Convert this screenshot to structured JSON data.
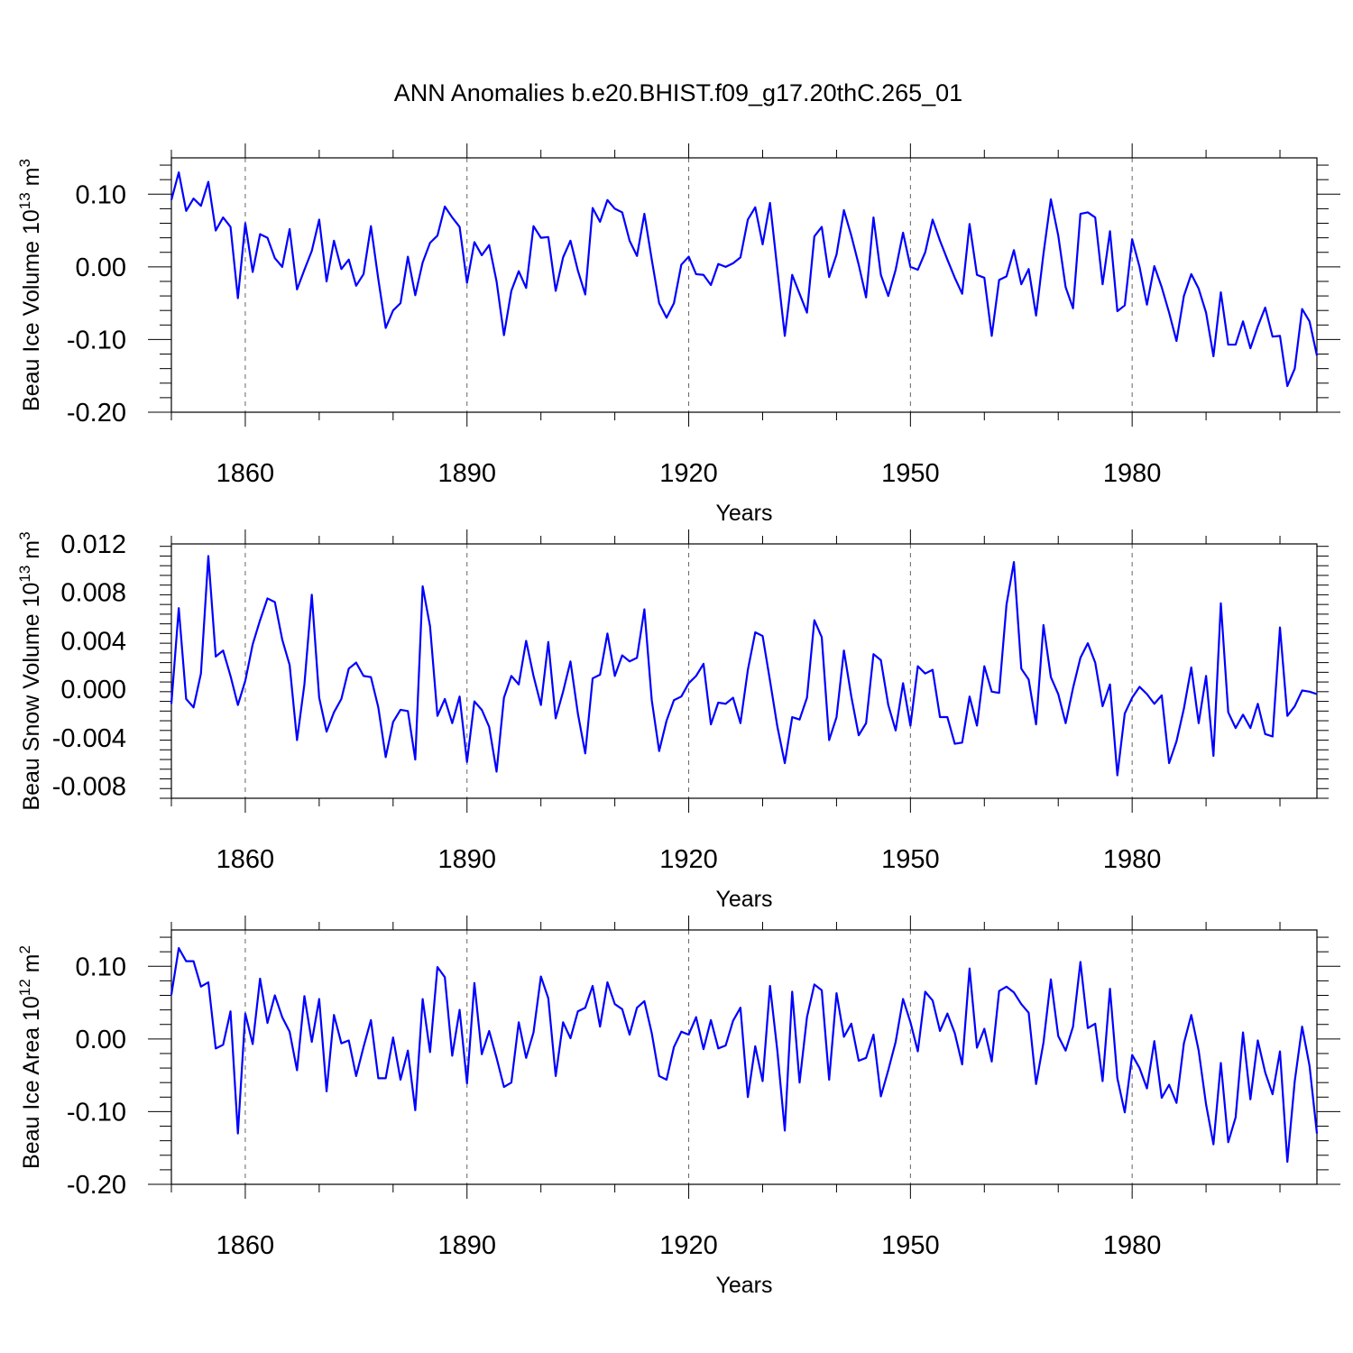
{
  "figure": {
    "title": "ANN Anomalies b.e20.BHIST.f09_g17.20thC.265_01",
    "line_color": "#0000ff"
  },
  "chart_data": [
    {
      "type": "line",
      "ylabel": "Beau Ice Volume 10",
      "ylabel_exp": "13",
      "ylabel_unit": " m",
      "ylabel_unit_exp": "3",
      "xlabel": "Years",
      "xlim": [
        1850,
        2005
      ],
      "ylim": [
        -0.2,
        0.15
      ],
      "yticks": [
        -0.2,
        -0.1,
        0.0,
        0.1
      ],
      "ytick_labels": [
        "-0.20",
        "-0.10",
        "0.00",
        "0.10"
      ],
      "xticks": [
        1860,
        1890,
        1920,
        1950,
        1980
      ],
      "xtick_labels": [
        "1860",
        "1890",
        "1920",
        "1950",
        "1980"
      ],
      "x_start": 1850,
      "values": [
        0.092,
        0.13,
        0.077,
        0.094,
        0.084,
        0.117,
        0.05,
        0.068,
        0.055,
        -0.043,
        0.06,
        -0.007,
        0.045,
        0.04,
        0.012,
        0.0,
        0.052,
        -0.031,
        -0.004,
        0.022,
        0.065,
        -0.02,
        0.036,
        -0.003,
        0.01,
        -0.026,
        -0.01,
        0.056,
        -0.017,
        -0.084,
        -0.06,
        -0.05,
        0.014,
        -0.039,
        0.006,
        0.033,
        0.043,
        0.083,
        0.068,
        0.055,
        -0.022,
        0.034,
        0.016,
        0.03,
        -0.02,
        -0.094,
        -0.033,
        -0.006,
        -0.029,
        0.056,
        0.04,
        0.041,
        -0.033,
        0.013,
        0.036,
        -0.005,
        -0.038,
        0.081,
        0.062,
        0.092,
        0.08,
        0.075,
        0.036,
        0.015,
        0.073,
        0.01,
        -0.05,
        -0.07,
        -0.05,
        0.003,
        0.014,
        -0.01,
        -0.011,
        -0.025,
        0.004,
        0.0,
        0.005,
        0.013,
        0.065,
        0.082,
        0.031,
        0.088,
        -0.004,
        -0.095,
        -0.011,
        -0.037,
        -0.063,
        0.042,
        0.055,
        -0.014,
        0.017,
        0.078,
        0.043,
        0.003,
        -0.042,
        0.068,
        -0.011,
        -0.04,
        -0.004,
        0.047,
        0.0,
        -0.004,
        0.02,
        0.065,
        0.036,
        0.01,
        -0.015,
        -0.037,
        0.059,
        -0.011,
        -0.015,
        -0.095,
        -0.018,
        -0.013,
        0.023,
        -0.024,
        -0.003,
        -0.067,
        0.018,
        0.093,
        0.043,
        -0.028,
        -0.057,
        0.073,
        0.075,
        0.068,
        -0.024,
        0.049,
        -0.061,
        -0.053,
        0.038,
        0.0,
        -0.052,
        0.001,
        -0.028,
        -0.063,
        -0.102,
        -0.04,
        -0.01,
        -0.03,
        -0.063,
        -0.123,
        -0.035,
        -0.107,
        -0.107,
        -0.075,
        -0.112,
        -0.082,
        -0.056,
        -0.096,
        -0.095,
        -0.164,
        -0.14,
        -0.058,
        -0.075,
        -0.122
      ]
    },
    {
      "type": "line",
      "ylabel": "Beau Snow Volume 10",
      "ylabel_exp": "13",
      "ylabel_unit": " m",
      "ylabel_unit_exp": "3",
      "xlabel": "Years",
      "xlim": [
        1850,
        2005
      ],
      "ylim": [
        -0.009,
        0.012
      ],
      "yticks": [
        -0.008,
        -0.004,
        0.0,
        0.004,
        0.008,
        0.012
      ],
      "ytick_labels": [
        "-0.008",
        "-0.004",
        "0.000",
        "0.004",
        "0.008",
        "0.012"
      ],
      "xticks": [
        1860,
        1890,
        1920,
        1950,
        1980
      ],
      "xtick_labels": [
        "1860",
        "1890",
        "1920",
        "1950",
        "1980"
      ],
      "x_start": 1850,
      "values": [
        -0.0012,
        0.0067,
        -0.0008,
        -0.0015,
        0.0013,
        0.011,
        0.0027,
        0.0032,
        0.0011,
        -0.0013,
        0.0007,
        0.0037,
        0.0057,
        0.0075,
        0.0072,
        0.0041,
        0.002,
        -0.0042,
        0.0004,
        0.0078,
        -0.0007,
        -0.0035,
        -0.0019,
        -0.0008,
        0.0017,
        0.0022,
        0.0011,
        0.001,
        -0.0015,
        -0.0056,
        -0.0027,
        -0.0017,
        -0.0018,
        -0.0058,
        0.0085,
        0.0052,
        -0.0022,
        -0.0008,
        -0.0028,
        -0.0006,
        -0.006,
        -0.001,
        -0.0017,
        -0.0031,
        -0.0068,
        -0.0007,
        0.0011,
        0.0004,
        0.004,
        0.0011,
        -0.0013,
        0.0039,
        -0.0024,
        -0.0002,
        0.0023,
        -0.002,
        -0.0053,
        0.0009,
        0.0012,
        0.0046,
        0.0011,
        0.0028,
        0.0023,
        0.0026,
        0.0066,
        -0.0009,
        -0.0051,
        -0.0026,
        -0.0009,
        -0.0006,
        0.0005,
        0.0011,
        0.0021,
        -0.0029,
        -0.0011,
        -0.0012,
        -0.0007,
        -0.0028,
        0.0016,
        0.0047,
        0.0044,
        0.0007,
        -0.0031,
        -0.0061,
        -0.0023,
        -0.0025,
        -0.0007,
        0.0057,
        0.0043,
        -0.0042,
        -0.0023,
        0.0032,
        -0.0006,
        -0.0038,
        -0.0028,
        0.0029,
        0.0024,
        -0.0013,
        -0.0034,
        0.0005,
        -0.003,
        0.0019,
        0.0013,
        0.0016,
        -0.0023,
        -0.0023,
        -0.0045,
        -0.0044,
        -0.0006,
        -0.003,
        0.0019,
        -0.0002,
        -0.0003,
        0.007,
        0.0105,
        0.0017,
        0.0008,
        -0.0029,
        0.0053,
        0.001,
        -0.0004,
        -0.0028,
        0.0001,
        0.0026,
        0.0038,
        0.0022,
        -0.0014,
        0.0004,
        -0.0071,
        -0.002,
        -0.0007,
        0.0002,
        -0.0004,
        -0.0012,
        -0.0005,
        -0.0061,
        -0.0043,
        -0.0016,
        0.0018,
        -0.0028,
        0.0011,
        -0.0055,
        0.0071,
        -0.0019,
        -0.0032,
        -0.0021,
        -0.0032,
        -0.0012,
        -0.0037,
        -0.0039,
        0.0051,
        -0.0022,
        -0.0014,
        -0.0001,
        -0.0002,
        -0.0004
      ]
    },
    {
      "type": "line",
      "ylabel": "Beau Ice Area 10",
      "ylabel_exp": "12",
      "ylabel_unit": " m",
      "ylabel_unit_exp": "2",
      "xlabel": "Years",
      "xlim": [
        1850,
        2005
      ],
      "ylim": [
        -0.2,
        0.15
      ],
      "yticks": [
        -0.2,
        -0.1,
        0.0,
        0.1
      ],
      "ytick_labels": [
        "-0.20",
        "-0.10",
        "0.00",
        "0.10"
      ],
      "xticks": [
        1860,
        1890,
        1920,
        1950,
        1980
      ],
      "xtick_labels": [
        "1860",
        "1890",
        "1920",
        "1950",
        "1980"
      ],
      "x_start": 1850,
      "values": [
        0.061,
        0.125,
        0.107,
        0.107,
        0.072,
        0.078,
        -0.013,
        -0.008,
        0.038,
        -0.13,
        0.035,
        -0.007,
        0.083,
        0.022,
        0.06,
        0.03,
        0.01,
        -0.043,
        0.059,
        -0.004,
        0.055,
        -0.072,
        0.033,
        -0.006,
        -0.002,
        -0.051,
        -0.011,
        0.026,
        -0.054,
        -0.054,
        0.002,
        -0.056,
        -0.016,
        -0.098,
        0.055,
        -0.018,
        0.099,
        0.085,
        -0.023,
        0.04,
        -0.061,
        0.077,
        -0.021,
        0.011,
        -0.026,
        -0.066,
        -0.06,
        0.023,
        -0.026,
        0.009,
        0.086,
        0.056,
        -0.051,
        0.023,
        0.001,
        0.038,
        0.043,
        0.073,
        0.017,
        0.078,
        0.048,
        0.041,
        0.006,
        0.043,
        0.052,
        0.008,
        -0.051,
        -0.056,
        -0.011,
        0.01,
        0.006,
        0.03,
        -0.014,
        0.026,
        -0.013,
        -0.009,
        0.025,
        0.043,
        -0.08,
        -0.01,
        -0.058,
        0.073,
        -0.017,
        -0.126,
        0.065,
        -0.06,
        0.03,
        0.075,
        0.067,
        -0.056,
        0.063,
        0.003,
        0.021,
        -0.03,
        -0.026,
        0.006,
        -0.079,
        -0.043,
        -0.004,
        0.055,
        0.023,
        -0.017,
        0.065,
        0.053,
        0.011,
        0.035,
        0.008,
        -0.035,
        0.097,
        -0.012,
        0.014,
        -0.031,
        0.066,
        0.072,
        0.064,
        0.048,
        0.036,
        -0.062,
        -0.005,
        0.082,
        0.004,
        -0.016,
        0.017,
        0.106,
        0.015,
        0.021,
        -0.058,
        0.069,
        -0.054,
        -0.101,
        -0.022,
        -0.04,
        -0.068,
        -0.003,
        -0.081,
        -0.063,
        -0.088,
        -0.006,
        0.033,
        -0.016,
        -0.09,
        -0.145,
        -0.033,
        -0.142,
        -0.108,
        0.009,
        -0.083,
        -0.002,
        -0.046,
        -0.076,
        -0.017,
        -0.169,
        -0.058,
        0.017,
        -0.037,
        -0.13
      ]
    }
  ]
}
